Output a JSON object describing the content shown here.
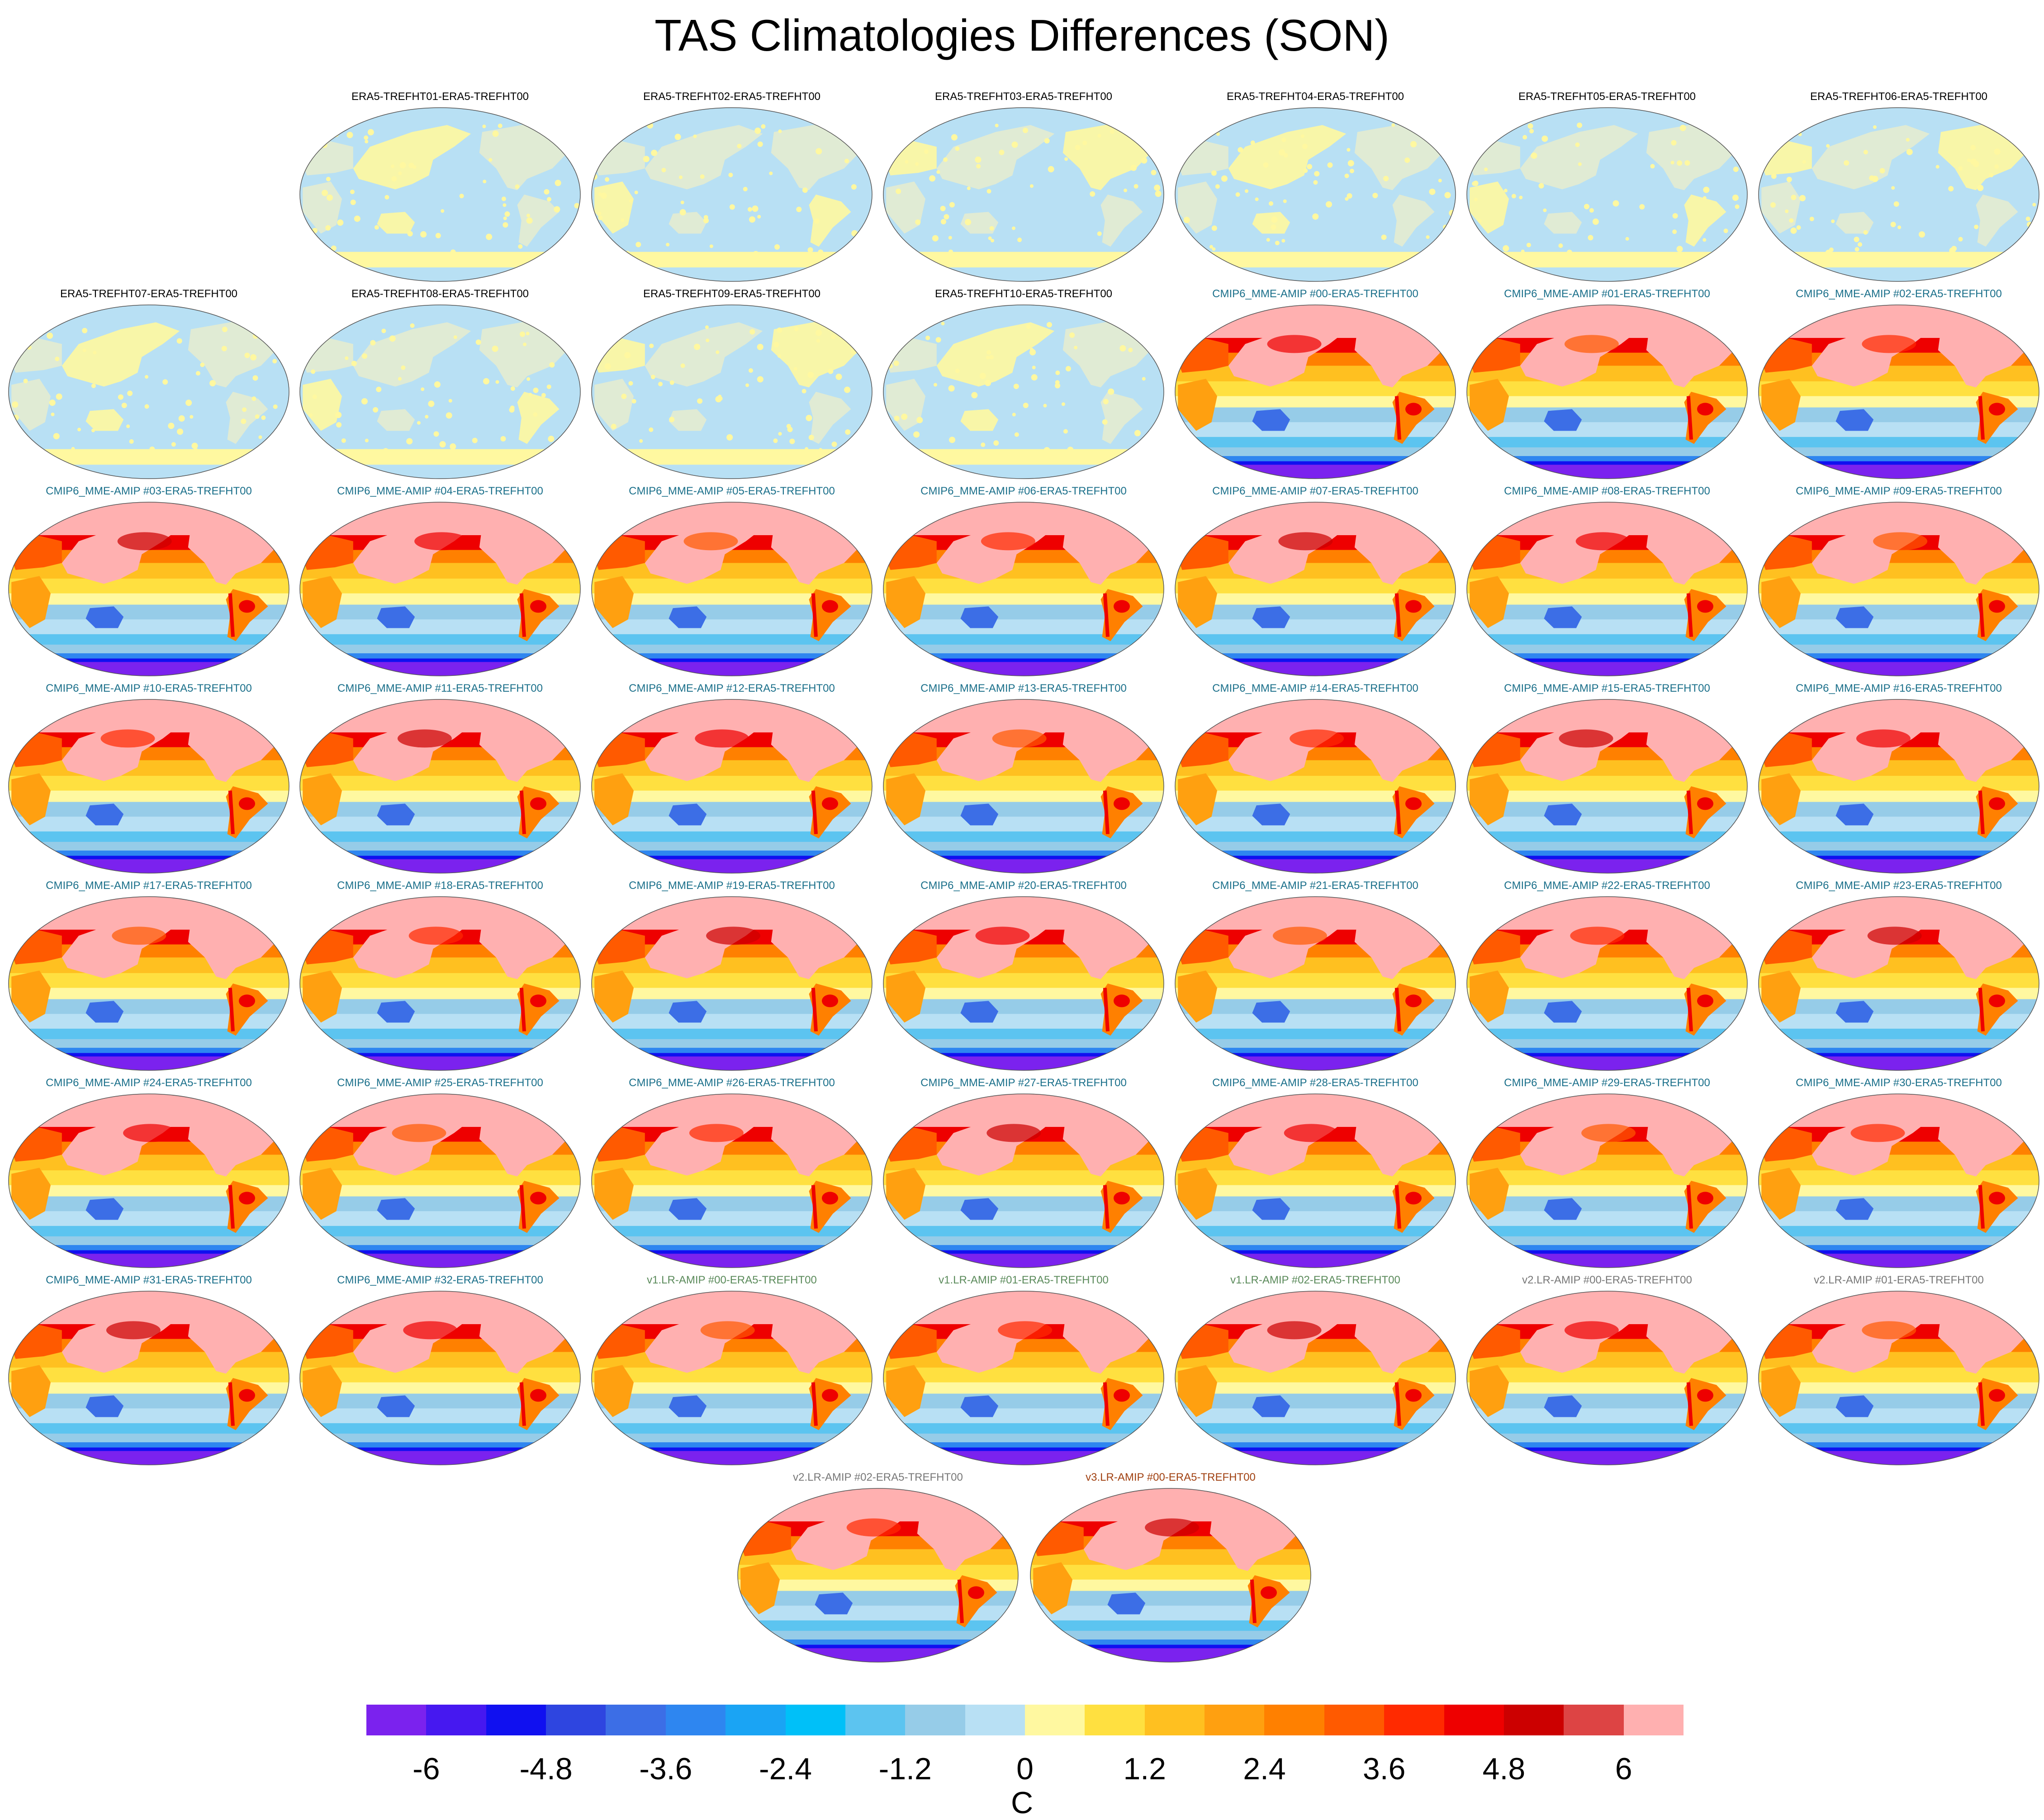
{
  "title": "TAS Climatologies Differences (SON)",
  "chart_data": {
    "type": "heatmap",
    "projection": "global map panels (Robinson-like)",
    "variable": "TAS",
    "season": "SON",
    "units": "C",
    "panels": [
      {
        "label": "ERA5-TREFHT01-ERA5-TREFHT00",
        "group": "era5",
        "color": "#000000"
      },
      {
        "label": "ERA5-TREFHT02-ERA5-TREFHT00",
        "group": "era5",
        "color": "#000000"
      },
      {
        "label": "ERA5-TREFHT03-ERA5-TREFHT00",
        "group": "era5",
        "color": "#000000"
      },
      {
        "label": "ERA5-TREFHT04-ERA5-TREFHT00",
        "group": "era5",
        "color": "#000000"
      },
      {
        "label": "ERA5-TREFHT05-ERA5-TREFHT00",
        "group": "era5",
        "color": "#000000"
      },
      {
        "label": "ERA5-TREFHT06-ERA5-TREFHT00",
        "group": "era5",
        "color": "#000000"
      },
      {
        "label": "ERA5-TREFHT07-ERA5-TREFHT00",
        "group": "era5",
        "color": "#000000"
      },
      {
        "label": "ERA5-TREFHT08-ERA5-TREFHT00",
        "group": "era5",
        "color": "#000000"
      },
      {
        "label": "ERA5-TREFHT09-ERA5-TREFHT00",
        "group": "era5",
        "color": "#000000"
      },
      {
        "label": "ERA5-TREFHT10-ERA5-TREFHT00",
        "group": "era5",
        "color": "#000000"
      },
      {
        "label": "CMIP6_MME-AMIP  #00-ERA5-TREFHT00",
        "group": "model",
        "color": "#1a6f8a"
      },
      {
        "label": "CMIP6_MME-AMIP  #01-ERA5-TREFHT00",
        "group": "model",
        "color": "#1a6f8a"
      },
      {
        "label": "CMIP6_MME-AMIP  #02-ERA5-TREFHT00",
        "group": "model",
        "color": "#1a6f8a"
      },
      {
        "label": "CMIP6_MME-AMIP  #03-ERA5-TREFHT00",
        "group": "model",
        "color": "#1a6f8a"
      },
      {
        "label": "CMIP6_MME-AMIP  #04-ERA5-TREFHT00",
        "group": "model",
        "color": "#1a6f8a"
      },
      {
        "label": "CMIP6_MME-AMIP  #05-ERA5-TREFHT00",
        "group": "model",
        "color": "#1a6f8a"
      },
      {
        "label": "CMIP6_MME-AMIP  #06-ERA5-TREFHT00",
        "group": "model",
        "color": "#1a6f8a"
      },
      {
        "label": "CMIP6_MME-AMIP  #07-ERA5-TREFHT00",
        "group": "model",
        "color": "#1a6f8a"
      },
      {
        "label": "CMIP6_MME-AMIP  #08-ERA5-TREFHT00",
        "group": "model",
        "color": "#1a6f8a"
      },
      {
        "label": "CMIP6_MME-AMIP  #09-ERA5-TREFHT00",
        "group": "model",
        "color": "#1a6f8a"
      },
      {
        "label": "CMIP6_MME-AMIP  #10-ERA5-TREFHT00",
        "group": "model",
        "color": "#1a6f8a"
      },
      {
        "label": "CMIP6_MME-AMIP  #11-ERA5-TREFHT00",
        "group": "model",
        "color": "#1a6f8a"
      },
      {
        "label": "CMIP6_MME-AMIP  #12-ERA5-TREFHT00",
        "group": "model",
        "color": "#1a6f8a"
      },
      {
        "label": "CMIP6_MME-AMIP  #13-ERA5-TREFHT00",
        "group": "model",
        "color": "#1a6f8a"
      },
      {
        "label": "CMIP6_MME-AMIP  #14-ERA5-TREFHT00",
        "group": "model",
        "color": "#1a6f8a"
      },
      {
        "label": "CMIP6_MME-AMIP  #15-ERA5-TREFHT00",
        "group": "model",
        "color": "#1a6f8a"
      },
      {
        "label": "CMIP6_MME-AMIP  #16-ERA5-TREFHT00",
        "group": "model",
        "color": "#1a6f8a"
      },
      {
        "label": "CMIP6_MME-AMIP  #17-ERA5-TREFHT00",
        "group": "model",
        "color": "#1a6f8a"
      },
      {
        "label": "CMIP6_MME-AMIP  #18-ERA5-TREFHT00",
        "group": "model",
        "color": "#1a6f8a"
      },
      {
        "label": "CMIP6_MME-AMIP  #19-ERA5-TREFHT00",
        "group": "model",
        "color": "#1a6f8a"
      },
      {
        "label": "CMIP6_MME-AMIP  #20-ERA5-TREFHT00",
        "group": "model",
        "color": "#1a6f8a"
      },
      {
        "label": "CMIP6_MME-AMIP  #21-ERA5-TREFHT00",
        "group": "model",
        "color": "#1a6f8a"
      },
      {
        "label": "CMIP6_MME-AMIP  #22-ERA5-TREFHT00",
        "group": "model",
        "color": "#1a6f8a"
      },
      {
        "label": "CMIP6_MME-AMIP  #23-ERA5-TREFHT00",
        "group": "model",
        "color": "#1a6f8a"
      },
      {
        "label": "CMIP6_MME-AMIP  #24-ERA5-TREFHT00",
        "group": "model",
        "color": "#1a6f8a"
      },
      {
        "label": "CMIP6_MME-AMIP  #25-ERA5-TREFHT00",
        "group": "model",
        "color": "#1a6f8a"
      },
      {
        "label": "CMIP6_MME-AMIP  #26-ERA5-TREFHT00",
        "group": "model",
        "color": "#1a6f8a"
      },
      {
        "label": "CMIP6_MME-AMIP  #27-ERA5-TREFHT00",
        "group": "model",
        "color": "#1a6f8a"
      },
      {
        "label": "CMIP6_MME-AMIP  #28-ERA5-TREFHT00",
        "group": "model",
        "color": "#1a6f8a"
      },
      {
        "label": "CMIP6_MME-AMIP  #29-ERA5-TREFHT00",
        "group": "model",
        "color": "#1a6f8a"
      },
      {
        "label": "CMIP6_MME-AMIP  #30-ERA5-TREFHT00",
        "group": "model",
        "color": "#1a6f8a"
      },
      {
        "label": "CMIP6_MME-AMIP  #31-ERA5-TREFHT00",
        "group": "model",
        "color": "#1a6f8a"
      },
      {
        "label": "CMIP6_MME-AMIP  #32-ERA5-TREFHT00",
        "group": "model",
        "color": "#1a6f8a"
      },
      {
        "label": "v1.LR-AMIP  #00-ERA5-TREFHT00",
        "group": "model",
        "color": "#5a8a5a"
      },
      {
        "label": "v1.LR-AMIP  #01-ERA5-TREFHT00",
        "group": "model",
        "color": "#5a8a5a"
      },
      {
        "label": "v1.LR-AMIP  #02-ERA5-TREFHT00",
        "group": "model",
        "color": "#5a8a5a"
      },
      {
        "label": "v2.LR-AMIP  #00-ERA5-TREFHT00",
        "group": "model",
        "color": "#777777"
      },
      {
        "label": "v2.LR-AMIP  #01-ERA5-TREFHT00",
        "group": "model",
        "color": "#777777"
      },
      {
        "label": "v2.LR-AMIP  #02-ERA5-TREFHT00",
        "group": "model",
        "color": "#777777"
      },
      {
        "label": "v3.LR-AMIP  #00-ERA5-TREFHT00",
        "group": "model",
        "color": "#a04010"
      }
    ],
    "colorbar": {
      "label": "C",
      "min": -6.6,
      "max": 6.6,
      "ticks": [
        "-6",
        "-4.8",
        "-3.6",
        "-2.4",
        "-1.2",
        "0",
        "1.2",
        "2.4",
        "3.6",
        "4.8",
        "6"
      ],
      "tick_values": [
        -6,
        -4.8,
        -3.6,
        -2.4,
        -1.2,
        0,
        1.2,
        2.4,
        3.6,
        4.8,
        6
      ],
      "colors": [
        "#7b22ee",
        "#4618f0",
        "#1010f0",
        "#2e45e0",
        "#3c6ee6",
        "#2e86f0",
        "#1aa4f4",
        "#00c0f8",
        "#5cc4f0",
        "#96cce8",
        "#b8e0f4",
        "#fff8a0",
        "#ffe040",
        "#ffc020",
        "#ffa010",
        "#ff8000",
        "#ff5a00",
        "#ff2a00",
        "#ee0000",
        "#cc0000",
        "#dd4444",
        "#ffb0b0"
      ]
    }
  }
}
